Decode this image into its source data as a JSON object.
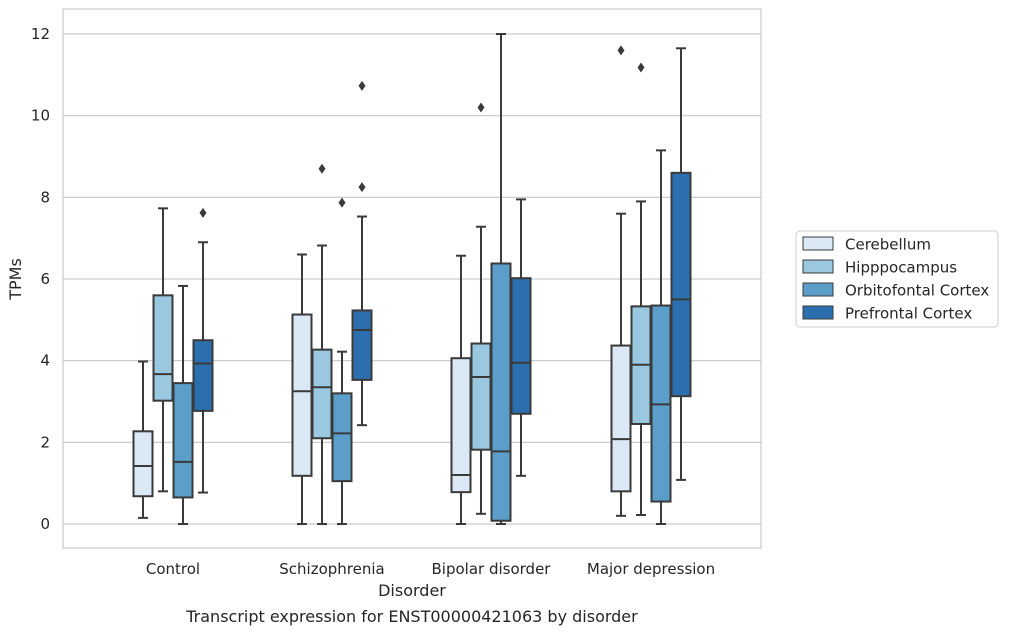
{
  "chart_data": {
    "type": "boxplot",
    "title": "",
    "caption": "Transcript expression for ENST00000421063 by disorder",
    "xlabel": "Disorder",
    "ylabel": "TPMs",
    "ylim": [
      -0.57,
      12.6
    ],
    "yticks": [
      0,
      2,
      4,
      6,
      8,
      10,
      12
    ],
    "grid": "horizontal",
    "legend_placement": "right",
    "categories": [
      "Control",
      "Schizophrenia",
      "Bipolar disorder",
      "Major depression"
    ],
    "series": [
      {
        "name": "Cerebellum",
        "color": "#dbe9f6",
        "boxes": [
          {
            "whisker_low": 0.15,
            "q1": 0.68,
            "median": 1.42,
            "q3": 2.27,
            "whisker_high": 3.98,
            "outliers": []
          },
          {
            "whisker_low": 0.0,
            "q1": 1.18,
            "median": 3.25,
            "q3": 5.13,
            "whisker_high": 6.6,
            "outliers": []
          },
          {
            "whisker_low": 0.0,
            "q1": 0.78,
            "median": 1.2,
            "q3": 4.06,
            "whisker_high": 6.57,
            "outliers": []
          },
          {
            "whisker_low": 0.2,
            "q1": 0.8,
            "median": 2.08,
            "q3": 4.37,
            "whisker_high": 7.6,
            "outliers": [
              11.6
            ]
          }
        ]
      },
      {
        "name": "Hipppocampus",
        "color": "#9ac8e0",
        "boxes": [
          {
            "whisker_low": 0.8,
            "q1": 3.02,
            "median": 3.67,
            "q3": 5.6,
            "whisker_high": 7.73,
            "outliers": []
          },
          {
            "whisker_low": 0.0,
            "q1": 2.1,
            "median": 3.35,
            "q3": 4.27,
            "whisker_high": 6.82,
            "outliers": [
              8.7
            ]
          },
          {
            "whisker_low": 0.25,
            "q1": 1.82,
            "median": 3.6,
            "q3": 4.42,
            "whisker_high": 7.28,
            "outliers": [
              10.2
            ]
          },
          {
            "whisker_low": 0.22,
            "q1": 2.45,
            "median": 3.9,
            "q3": 5.33,
            "whisker_high": 7.9,
            "outliers": [
              11.18
            ]
          }
        ]
      },
      {
        "name": "Orbitofontal Cortex",
        "color": "#5a9ec9",
        "boxes": [
          {
            "whisker_low": 0.0,
            "q1": 0.65,
            "median": 1.52,
            "q3": 3.45,
            "whisker_high": 5.83,
            "outliers": []
          },
          {
            "whisker_low": 0.0,
            "q1": 1.05,
            "median": 2.22,
            "q3": 3.2,
            "whisker_high": 4.22,
            "outliers": [
              7.87
            ]
          },
          {
            "whisker_low": 0.0,
            "q1": 0.08,
            "median": 1.78,
            "q3": 6.38,
            "whisker_high": 12.0,
            "outliers": []
          },
          {
            "whisker_low": 0.0,
            "q1": 0.55,
            "median": 2.93,
            "q3": 5.35,
            "whisker_high": 9.15,
            "outliers": []
          }
        ]
      },
      {
        "name": "Prefrontal Cortex",
        "color": "#2c6fae",
        "boxes": [
          {
            "whisker_low": 0.77,
            "q1": 2.77,
            "median": 3.93,
            "q3": 4.5,
            "whisker_high": 6.9,
            "outliers": [
              7.62
            ]
          },
          {
            "whisker_low": 2.42,
            "q1": 3.53,
            "median": 4.75,
            "q3": 5.23,
            "whisker_high": 7.53,
            "outliers": [
              8.25,
              10.73
            ]
          },
          {
            "whisker_low": 1.18,
            "q1": 2.7,
            "median": 3.95,
            "q3": 6.02,
            "whisker_high": 7.95,
            "outliers": []
          },
          {
            "whisker_low": 1.08,
            "q1": 3.13,
            "median": 5.5,
            "q3": 8.6,
            "whisker_high": 11.65,
            "outliers": []
          }
        ]
      }
    ]
  }
}
